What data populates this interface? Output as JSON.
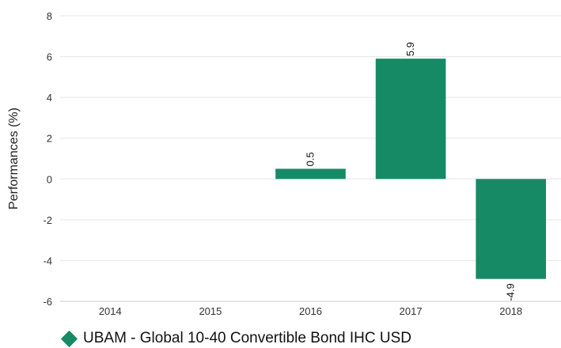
{
  "chart_data": {
    "type": "bar",
    "title": "",
    "xlabel": "",
    "ylabel": "Performances (%)",
    "ylim": [
      -6,
      8
    ],
    "yticks": [
      -6,
      -4,
      -2,
      0,
      2,
      4,
      6,
      8
    ],
    "ytick_labels": [
      "-6",
      "-4",
      "-2",
      "0",
      "2",
      "4",
      "6",
      "8"
    ],
    "categories": [
      "2014",
      "2015",
      "2016",
      "2017",
      "2018"
    ],
    "series": [
      {
        "name": "UBAM - Global 10-40 Convertible Bond IHC USD",
        "values": [
          null,
          null,
          0.5,
          5.9,
          -4.9
        ],
        "data_labels": [
          "",
          "",
          "0.5",
          "5.9",
          "-4.9"
        ],
        "color": "#168a65"
      }
    ],
    "grid": true,
    "legend_position": "bottom-left"
  }
}
